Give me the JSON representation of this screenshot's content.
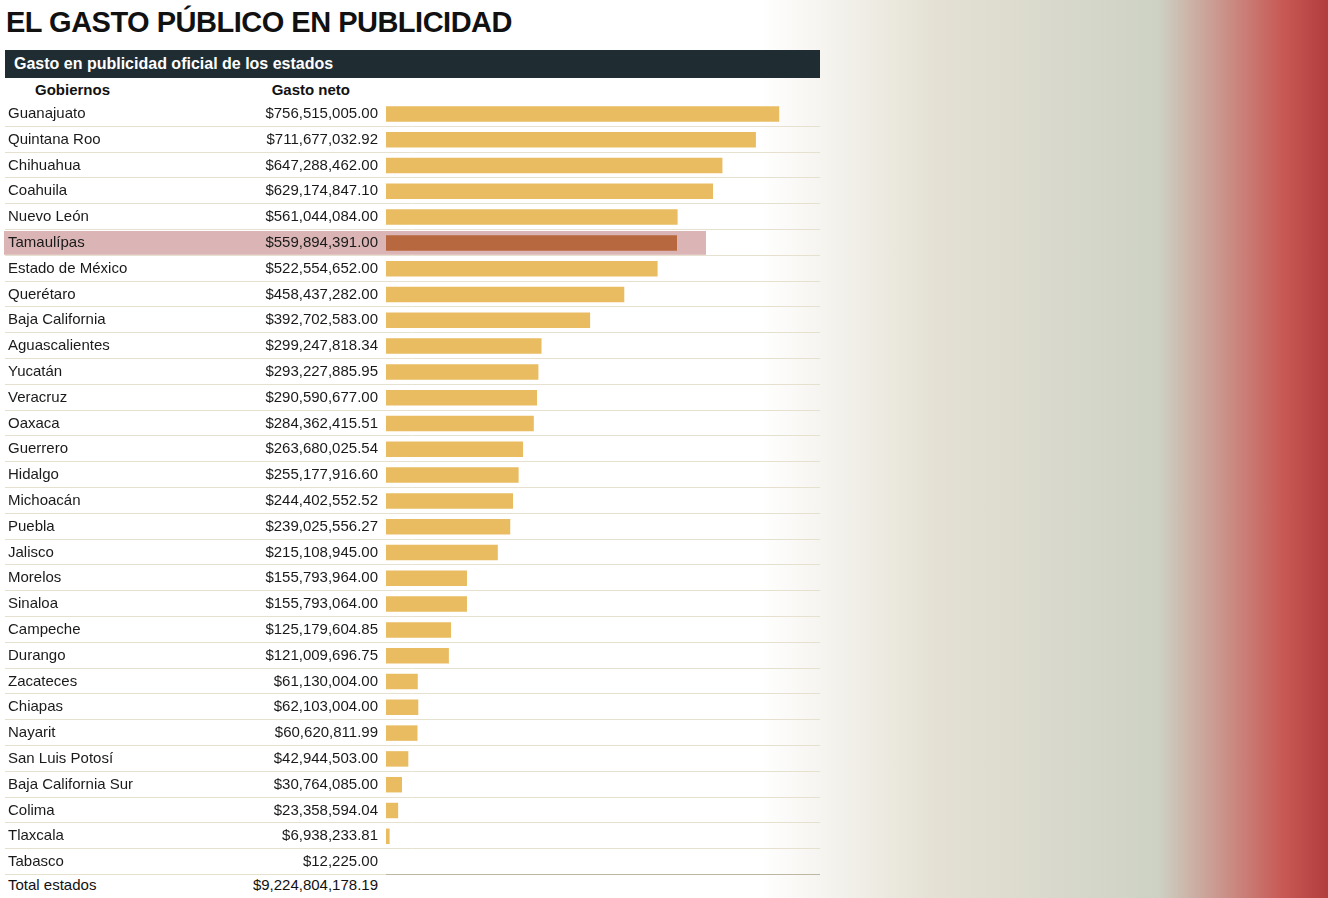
{
  "chart_data": {
    "type": "bar",
    "orientation": "horizontal",
    "title": "EL GASTO PÚBLICO EN PUBLICIDAD",
    "subtitle": "Gasto en publicidad oficial de los estados",
    "column_headers": [
      "Gobiernos",
      "Gasto neto"
    ],
    "categories": [
      "Guanajuato",
      "Quintana Roo",
      "Chihuahua",
      "Coahuila",
      "Nuevo León",
      "Tamaulípas",
      "Estado de México",
      "Querétaro",
      "Baja California",
      "Aguascalientes",
      "Yucatán",
      "Veracruz",
      "Oaxaca",
      "Guerrero",
      "Hidalgo",
      "Michoacán",
      "Puebla",
      "Jalisco",
      "Morelos",
      "Sinaloa",
      "Campeche",
      "Durango",
      "Zacateces",
      "Chiapas",
      "Nayarit",
      "San Luis Potosí",
      "Baja California Sur",
      "Colima",
      "Tlaxcala",
      "Tabasco"
    ],
    "values": [
      756515005.0,
      711677032.92,
      647288462.0,
      629174847.1,
      561044084.0,
      559894391.0,
      522554652.0,
      458437282.0,
      392702583.0,
      299247818.34,
      293227885.95,
      290590677.0,
      284362415.51,
      263680025.54,
      255177916.6,
      244402552.52,
      239025556.27,
      215108945.0,
      155793964.0,
      155793064.0,
      125179604.85,
      121009696.75,
      61130004.0,
      62103004.0,
      60620811.99,
      42944503.0,
      30764085.0,
      23358594.04,
      6938233.81,
      12225.0
    ],
    "value_labels": [
      "$756,515,005.00",
      "$711,677,032.92",
      "$647,288,462.00",
      "$629,174,847.10",
      "$561,044,084.00",
      "$559,894,391.00",
      "$522,554,652.00",
      "$458,437,282.00",
      "$392,702,583.00",
      "$299,247,818.34",
      "$293,227,885.95",
      "$290,590,677.00",
      "$284,362,415.51",
      "$263,680,025.54",
      "$255,177,916.60",
      "$244,402,552.52",
      "$239,025,556.27",
      "$215,108,945.00",
      "$155,793,964.00",
      "$155,793,064.00",
      "$125,179,604.85",
      "$121,009,696.75",
      "$61,130,004.00",
      "$62,103,004.00",
      "$60,620,811.99",
      "$42,944,503.00",
      "$30,764,085.00",
      "$23,358,594.04",
      "$6,938,233.81",
      "$12,225.00"
    ],
    "colors": [
      "#e9bc62",
      "#e9bc62",
      "#e9bc62",
      "#e9bc62",
      "#e9bc62",
      "#b8683e",
      "#e9bc62",
      "#e9bc62",
      "#e9bc62",
      "#e9bc62",
      "#e9bc62",
      "#e9bc62",
      "#e9bc62",
      "#e9bc62",
      "#e9bc62",
      "#e9bc62",
      "#e9bc62",
      "#e9bc62",
      "#e9bc62",
      "#e9bc62",
      "#e9bc62",
      "#e9bc62",
      "#e9bc62",
      "#e9bc62",
      "#e9bc62",
      "#e9bc62",
      "#e9bc62",
      "#e9bc62",
      "#e9bc62",
      "#e9bc62"
    ],
    "xlim": [
      0,
      835000000
    ],
    "grid": false,
    "tick_labels": false,
    "data_labels": true,
    "total": {
      "label": "Total estados",
      "value": 9224804178.19,
      "value_label": "$9,224,804,178.19"
    }
  }
}
